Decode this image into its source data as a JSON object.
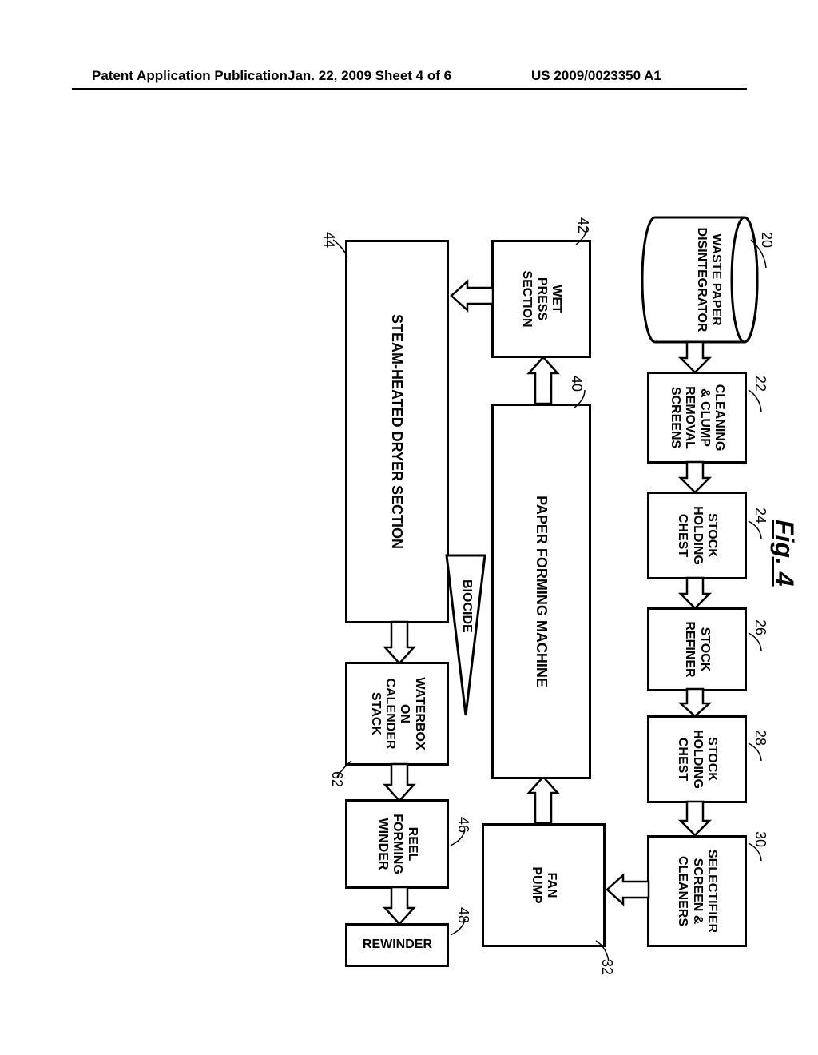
{
  "header": {
    "left": "Patent Application Publication",
    "mid": "Jan. 22, 2009  Sheet 4 of 6",
    "right": "US 2009/0023350 A1"
  },
  "figure_title": "Fig. 4",
  "nodes": {
    "n20": {
      "label": "WASTE PAPER\nDISINTEGRATOR",
      "ref": "20"
    },
    "n22": {
      "label": "CLEANING\n& CLUMP\nREMOVAL\nSCREENS",
      "ref": "22"
    },
    "n24": {
      "label": "STOCK\nHOLDING\nCHEST",
      "ref": "24"
    },
    "n26": {
      "label": "STOCK\nREFINER",
      "ref": "26"
    },
    "n28": {
      "label": "STOCK\nHOLDING\nCHEST",
      "ref": "28"
    },
    "n30": {
      "label": "SELECTIFIER\nSCREEN &\nCLEANERS",
      "ref": "30"
    },
    "n32": {
      "label": "FAN\nPUMP",
      "ref": "32"
    },
    "n40": {
      "label": "PAPER FORMING MACHINE",
      "ref": "40"
    },
    "n42": {
      "label": "WET\nPRESS\nSECTION",
      "ref": "42"
    },
    "n44": {
      "label": "STEAM-HEATED DRYER SECTION",
      "ref": "44"
    },
    "n62": {
      "label": "WATERBOX\nON\nCALENDER\nSTACK",
      "ref": "62"
    },
    "n46": {
      "label": "REEL\nFORMING\nWINDER",
      "ref": "46"
    },
    "n48": {
      "label": "REWINDER",
      "ref": "48"
    },
    "biocide": {
      "label": "BIOCIDE"
    }
  },
  "colors": {
    "stroke": "#000000",
    "bg": "#ffffff"
  }
}
